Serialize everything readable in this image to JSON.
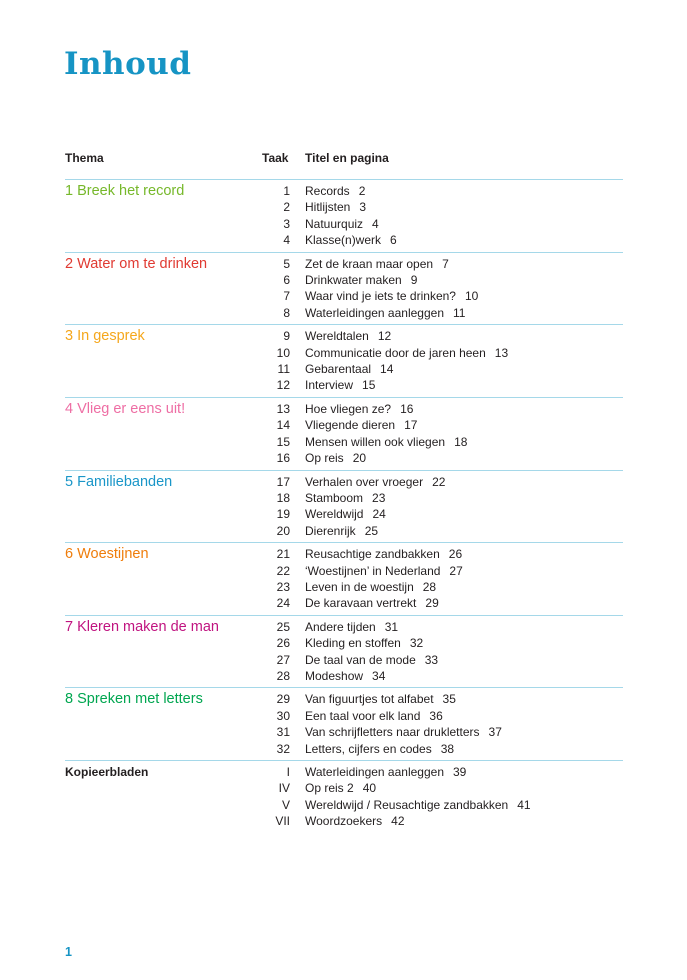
{
  "page": {
    "title": "Inhoud",
    "page_number": "1",
    "accent_color": "#1694c4",
    "line_color": "#a5d8e9"
  },
  "table": {
    "headers": {
      "thema": "Thema",
      "taak": "Taak",
      "titel": "Titel en pagina"
    },
    "sections": [
      {
        "theme": "1 Breek het record",
        "color": "#76b82a",
        "rows": [
          {
            "taak": "1",
            "title": "Records",
            "page": "2"
          },
          {
            "taak": "2",
            "title": "Hitlijsten",
            "page": "3"
          },
          {
            "taak": "3",
            "title": "Natuurquiz",
            "page": "4"
          },
          {
            "taak": "4",
            "title": "Klasse(n)werk",
            "page": "6"
          }
        ]
      },
      {
        "theme": "2 Water om te drinken",
        "color": "#e03a32",
        "rows": [
          {
            "taak": "5",
            "title": "Zet de kraan maar open",
            "page": "7"
          },
          {
            "taak": "6",
            "title": "Drinkwater maken",
            "page": "9"
          },
          {
            "taak": "7",
            "title": "Waar vind je iets te drinken?",
            "page": "10"
          },
          {
            "taak": "8",
            "title": "Waterleidingen aanleggen",
            "page": "11"
          }
        ]
      },
      {
        "theme": "3 In gesprek",
        "color": "#f5a71c",
        "rows": [
          {
            "taak": "9",
            "title": "Wereldtalen",
            "page": "12"
          },
          {
            "taak": "10",
            "title": "Communicatie door de jaren heen",
            "page": "13"
          },
          {
            "taak": "11",
            "title": "Gebarentaal",
            "page": "14"
          },
          {
            "taak": "12",
            "title": "Interview",
            "page": "15"
          }
        ]
      },
      {
        "theme": "4 Vlieg er eens uit!",
        "color": "#ee6ea4",
        "rows": [
          {
            "taak": "13",
            "title": "Hoe vliegen ze?",
            "page": "16"
          },
          {
            "taak": "14",
            "title": "Vliegende dieren",
            "page": "17"
          },
          {
            "taak": "15",
            "title": "Mensen willen ook vliegen",
            "page": "18"
          },
          {
            "taak": "16",
            "title": "Op reis",
            "page": "20"
          }
        ]
      },
      {
        "theme": "5 Familiebanden",
        "color": "#1a96c8",
        "rows": [
          {
            "taak": "17",
            "title": "Verhalen over vroeger",
            "page": "22"
          },
          {
            "taak": "18",
            "title": "Stamboom",
            "page": "23"
          },
          {
            "taak": "19",
            "title": "Wereldwijd",
            "page": "24"
          },
          {
            "taak": "20",
            "title": "Dierenrijk",
            "page": "25"
          }
        ]
      },
      {
        "theme": "6 Woestijnen",
        "color": "#ef7d0b",
        "rows": [
          {
            "taak": "21",
            "title": "Reusachtige zandbakken",
            "page": "26"
          },
          {
            "taak": "22",
            "title": "‘Woestijnen’ in Nederland",
            "page": "27"
          },
          {
            "taak": "23",
            "title": "Leven in de woestijn",
            "page": "28"
          },
          {
            "taak": "24",
            "title": "De karavaan vertrekt",
            "page": "29"
          }
        ]
      },
      {
        "theme": "7 Kleren maken de man",
        "color": "#c01480",
        "rows": [
          {
            "taak": "25",
            "title": "Andere tijden",
            "page": "31"
          },
          {
            "taak": "26",
            "title": "Kleding en stoffen",
            "page": "32"
          },
          {
            "taak": "27",
            "title": "De taal van de mode",
            "page": "33"
          },
          {
            "taak": "28",
            "title": "Modeshow",
            "page": "34"
          }
        ]
      },
      {
        "theme": "8 Spreken met letters",
        "color": "#00a650",
        "rows": [
          {
            "taak": "29",
            "title": "Van figuurtjes tot alfabet",
            "page": "35"
          },
          {
            "taak": "30",
            "title": "Een taal voor elk land",
            "page": "36"
          },
          {
            "taak": "31",
            "title": "Van schrijfletters naar drukletters",
            "page": "37"
          },
          {
            "taak": "32",
            "title": "Letters, cijfers en codes",
            "page": "38"
          }
        ]
      },
      {
        "theme": "Kopieerbladen",
        "color": "#231f20",
        "bold": true,
        "rows": [
          {
            "taak": "I",
            "title": "Waterleidingen aanleggen",
            "page": "39"
          },
          {
            "taak": "IV",
            "title": "Op reis 2",
            "page": "40"
          },
          {
            "taak": "V",
            "title": "Wereldwijd / Reusachtige zandbakken",
            "page": "41"
          },
          {
            "taak": "VII",
            "title": "Woordzoekers",
            "page": "42"
          }
        ]
      }
    ]
  }
}
